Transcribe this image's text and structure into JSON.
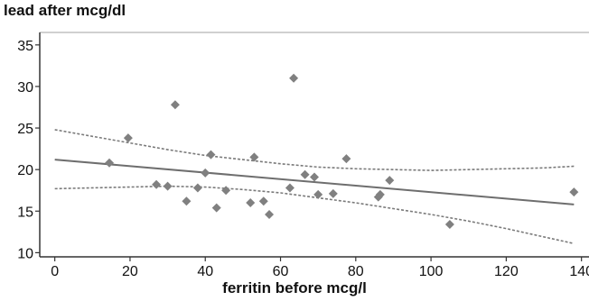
{
  "chart_data": {
    "type": "scatter",
    "title": "",
    "ylabel": "lead after mcg/dl",
    "xlabel": "ferritin before mcg/l",
    "xlim": [
      -4,
      142
    ],
    "ylim": [
      9.5,
      36.5
    ],
    "x_ticks": [
      0,
      20,
      40,
      60,
      80,
      100,
      120,
      140
    ],
    "y_ticks": [
      10,
      15,
      20,
      25,
      30,
      35
    ],
    "grid": false,
    "legend": "none",
    "colors": {
      "points": "#808080",
      "fit_line": "#6e6e6e",
      "ci_band": "#7a7a7a",
      "axis": "#333333"
    },
    "series": [
      {
        "type": "scatter",
        "x": [
          14.5,
          19.5,
          27,
          30,
          32,
          35,
          38,
          40,
          41.5,
          43,
          45.5,
          52,
          53,
          55.5,
          57,
          62.5,
          63.5,
          66.5,
          69,
          70,
          74,
          77.5,
          86,
          86.5,
          89,
          105,
          138
        ],
        "y": [
          20.8,
          23.8,
          18.2,
          18.0,
          27.8,
          16.2,
          17.8,
          19.6,
          21.8,
          15.4,
          17.5,
          16.0,
          21.5,
          16.2,
          14.6,
          17.8,
          31.0,
          19.4,
          19.1,
          17.0,
          17.1,
          21.3,
          16.7,
          17.0,
          18.7,
          13.4,
          17.3
        ]
      },
      {
        "type": "line",
        "style": "solid",
        "x": [
          0,
          138
        ],
        "y": [
          21.2,
          15.8
        ]
      },
      {
        "type": "line",
        "style": "dotted",
        "x": [
          0,
          10,
          20,
          30,
          40,
          50,
          60,
          70,
          80,
          90,
          100,
          110,
          120,
          130,
          138
        ],
        "y": [
          24.8,
          24.0,
          23.2,
          22.4,
          21.7,
          21.2,
          20.7,
          20.3,
          20.1,
          20.0,
          19.9,
          20.0,
          20.1,
          20.2,
          20.4
        ]
      },
      {
        "type": "line",
        "style": "dotted",
        "x": [
          0,
          10,
          20,
          30,
          40,
          50,
          60,
          70,
          80,
          90,
          100,
          110,
          120,
          130,
          138
        ],
        "y": [
          17.7,
          17.8,
          17.9,
          18.0,
          17.9,
          17.6,
          17.2,
          16.6,
          16.0,
          15.3,
          14.6,
          13.8,
          12.9,
          11.9,
          11.1
        ]
      }
    ]
  }
}
